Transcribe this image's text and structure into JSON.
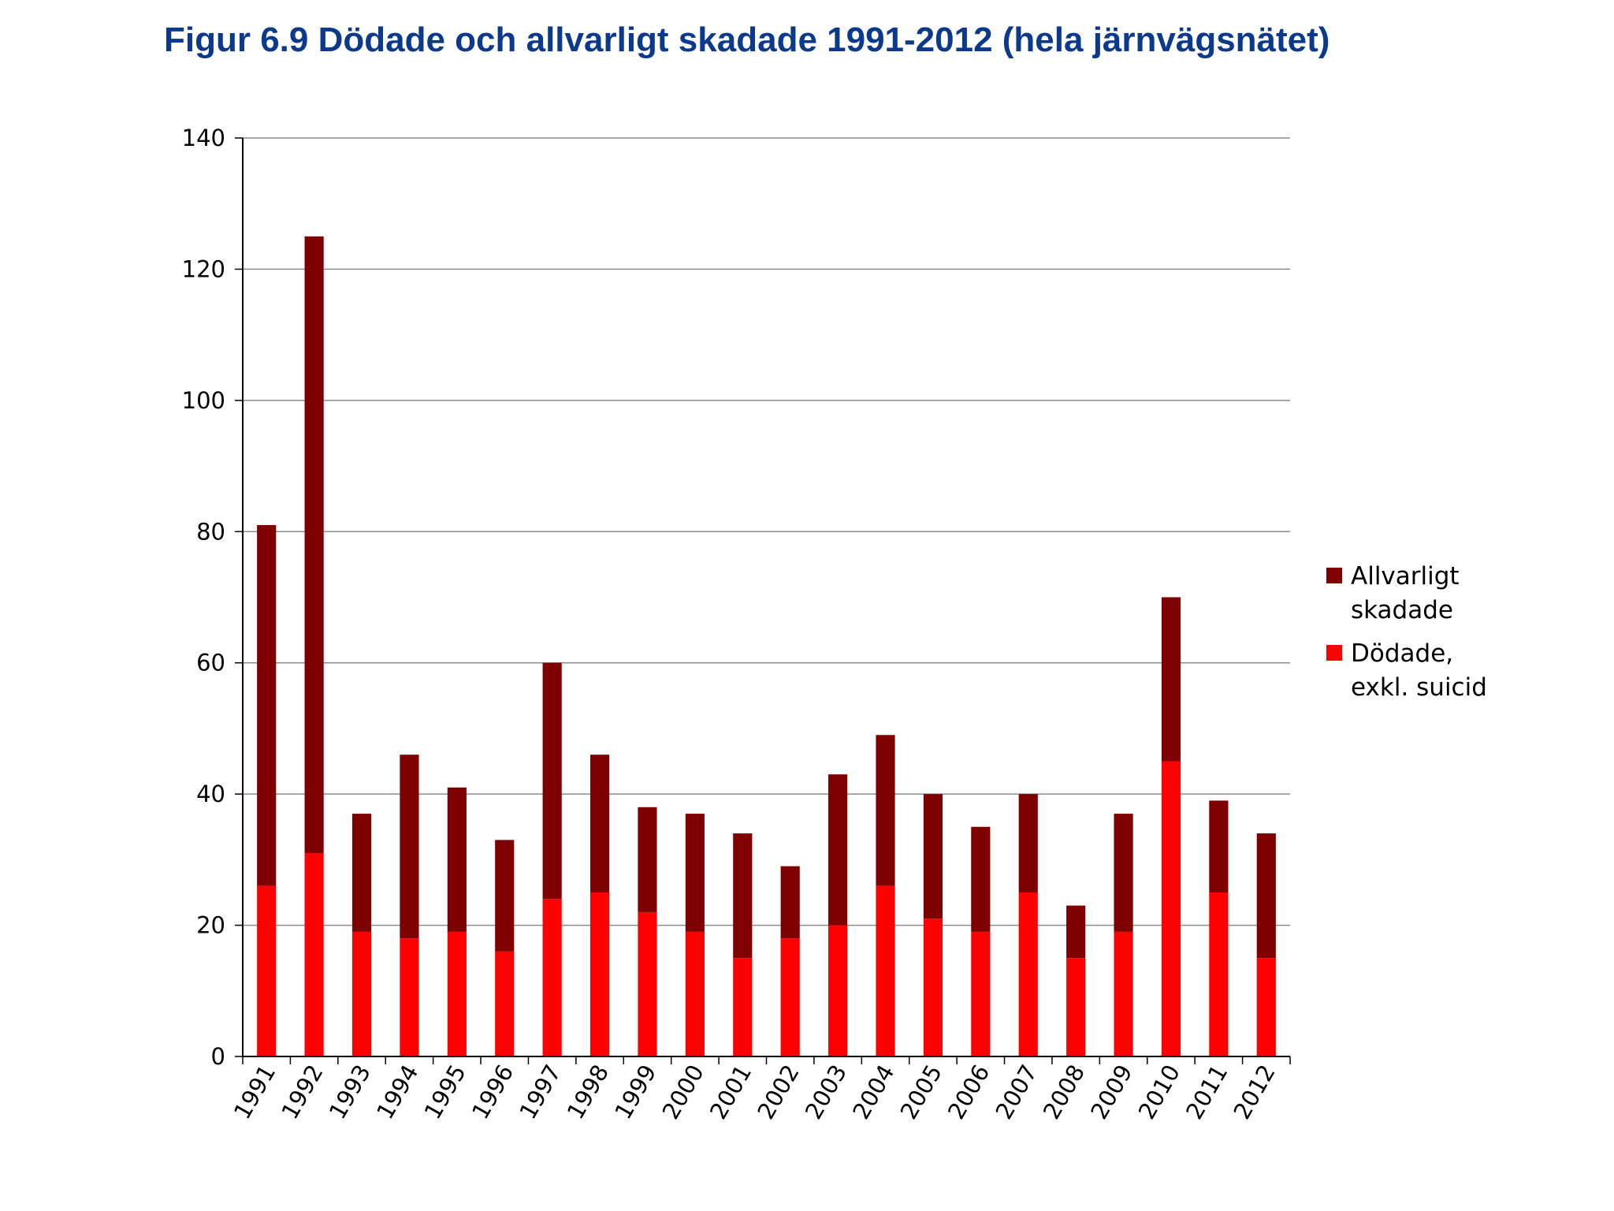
{
  "title": "Figur 6.9 Dödade och allvarligt skadade 1991-2012 (hela järnvägsnätet)",
  "chart_data": {
    "type": "bar",
    "stacked": true,
    "title": "Figur 6.9 Dödade och allvarligt skadade 1991-2012 (hela järnvägsnätet)",
    "xlabel": "",
    "ylabel": "",
    "ylim": [
      0,
      140
    ],
    "yticks": [
      0,
      20,
      40,
      60,
      80,
      100,
      120,
      140
    ],
    "grid": true,
    "legend_position": "right",
    "categories": [
      "1991",
      "1992",
      "1993",
      "1994",
      "1995",
      "1996",
      "1997",
      "1998",
      "1999",
      "2000",
      "2001",
      "2002",
      "2003",
      "2004",
      "2005",
      "2006",
      "2007",
      "2008",
      "2009",
      "2010",
      "2011",
      "2012"
    ],
    "series": [
      {
        "name": "Dödade, exkl. suicid",
        "legend_lines": [
          "Dödade,",
          "exkl. suicid"
        ],
        "color": "#ff0000",
        "values": [
          26,
          31,
          19,
          18,
          19,
          16,
          24,
          25,
          22,
          19,
          15,
          18,
          20,
          26,
          21,
          19,
          25,
          15,
          19,
          45,
          25,
          15
        ]
      },
      {
        "name": "Allvarligt skadade",
        "legend_lines": [
          "Allvarligt",
          "skadade"
        ],
        "color": "#7f0000",
        "values": [
          55,
          94,
          18,
          28,
          22,
          17,
          36,
          21,
          16,
          18,
          19,
          11,
          23,
          23,
          19,
          16,
          15,
          8,
          18,
          25,
          14,
          19
        ]
      }
    ]
  }
}
